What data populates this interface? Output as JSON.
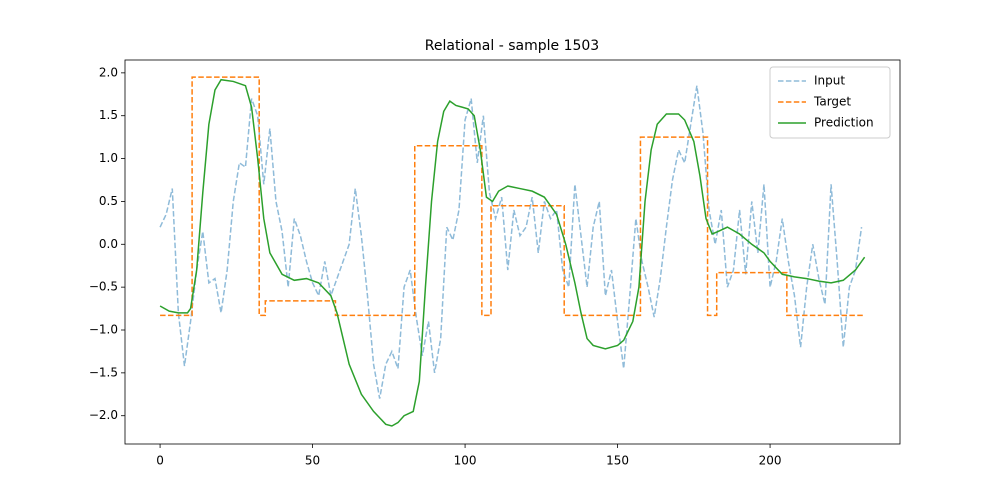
{
  "chart_data": {
    "type": "line",
    "title": "Relational - sample 1503",
    "xlim": [
      -11.5,
      242.6
    ],
    "ylim": [
      -2.33,
      2.15
    ],
    "xticks": [
      0,
      50,
      100,
      150,
      200
    ],
    "yticks": [
      {
        "value": -2,
        "label": "−2.0"
      },
      {
        "value": -1.5,
        "label": "−1.5"
      },
      {
        "value": -1,
        "label": "−1.0"
      },
      {
        "value": -0.5,
        "label": "−0.5"
      },
      {
        "value": 0,
        "label": "0.0"
      },
      {
        "value": 0.5,
        "label": "0.5"
      },
      {
        "value": 1,
        "label": "1.0"
      },
      {
        "value": 1.5,
        "label": "1.5"
      },
      {
        "value": 2,
        "label": "2.0"
      }
    ],
    "legend": "upper right",
    "series": [
      {
        "name": "Input",
        "color": "#1f77b4",
        "dash": true,
        "opacity": 0.5,
        "x": [
          0,
          2,
          4,
          6,
          8,
          10,
          12,
          14,
          16,
          18,
          20,
          22,
          24,
          26,
          28,
          30,
          32,
          34,
          36,
          38,
          40,
          42,
          44,
          46,
          48,
          50,
          52,
          54,
          56,
          58,
          60,
          62,
          64,
          66,
          68,
          70,
          72,
          74,
          76,
          78,
          80,
          82,
          84,
          86,
          88,
          90,
          92,
          94,
          96,
          98,
          100,
          102,
          104,
          106,
          108,
          110,
          112,
          114,
          116,
          118,
          120,
          122,
          124,
          126,
          128,
          130,
          132,
          134,
          136,
          138,
          140,
          142,
          144,
          146,
          148,
          150,
          152,
          154,
          156,
          158,
          160,
          162,
          164,
          166,
          168,
          170,
          172,
          174,
          176,
          178,
          180,
          182,
          184,
          186,
          188,
          190,
          192,
          194,
          196,
          198,
          200,
          202,
          204,
          206,
          208,
          210,
          212,
          214,
          216,
          218,
          220,
          222,
          224,
          226,
          228,
          230
        ],
        "values": [
          0.2,
          0.35,
          0.65,
          -0.8,
          -1.42,
          -0.9,
          -0.3,
          0.15,
          -0.45,
          -0.4,
          -0.8,
          -0.3,
          0.5,
          0.95,
          0.9,
          1.7,
          1.5,
          0.7,
          1.35,
          0.5,
          0.15,
          -0.5,
          0.3,
          0.1,
          -0.2,
          -0.45,
          -0.6,
          -0.2,
          -0.6,
          -0.4,
          -0.2,
          0.0,
          0.65,
          0.1,
          -0.6,
          -1.4,
          -1.8,
          -1.4,
          -1.25,
          -1.45,
          -0.5,
          -0.3,
          -0.85,
          -1.3,
          -0.9,
          -1.5,
          -1.1,
          0.2,
          0.05,
          0.4,
          1.45,
          1.7,
          0.95,
          1.5,
          0.6,
          0.3,
          0.55,
          -0.3,
          0.4,
          0.1,
          0.2,
          0.55,
          -0.1,
          0.5,
          0.3,
          0.4,
          -0.3,
          -0.5,
          0.7,
          0.1,
          -0.5,
          0.2,
          0.5,
          -0.6,
          -0.3,
          -0.9,
          -1.45,
          -0.6,
          0.3,
          -0.2,
          -0.5,
          -0.85,
          -0.4,
          0.2,
          0.75,
          1.1,
          0.95,
          1.4,
          1.85,
          1.3,
          0.4,
          0.0,
          0.4,
          -0.5,
          -0.3,
          0.4,
          -0.35,
          0.5,
          -0.1,
          0.7,
          -0.5,
          -0.2,
          0.3,
          -0.2,
          -0.6,
          -1.2,
          -0.5,
          0.0,
          -0.4,
          -0.7,
          0.7,
          -0.2,
          -1.2,
          -0.5,
          -0.3,
          0.2
        ]
      },
      {
        "name": "Target",
        "color": "#ff7f0e",
        "dash": true,
        "opacity": 1,
        "x": [
          0,
          10.5,
          10.5,
          32.5,
          32.5,
          34.5,
          34.5,
          57.5,
          57.5,
          83.5,
          83.5,
          105.5,
          105.5,
          108.5,
          108.5,
          132.5,
          132.5,
          157.5,
          157.5,
          179.5,
          179.5,
          182.5,
          182.5,
          205.5,
          205.5,
          231
        ],
        "values": [
          -0.83,
          -0.83,
          1.95,
          1.95,
          -0.83,
          -0.83,
          -0.66,
          -0.66,
          -0.83,
          -0.83,
          1.15,
          1.15,
          -0.83,
          -0.83,
          0.45,
          0.45,
          -0.83,
          -0.83,
          1.25,
          1.25,
          -0.83,
          -0.83,
          -0.33,
          -0.33,
          -0.83,
          -0.83
        ]
      },
      {
        "name": "Prediction",
        "color": "#2ca02c",
        "dash": false,
        "opacity": 1,
        "x": [
          0,
          3,
          6,
          9,
          10,
          12,
          14,
          16,
          18,
          20,
          24,
          28,
          30,
          32,
          34,
          36,
          40,
          44,
          48,
          52,
          56,
          58,
          60,
          62,
          66,
          70,
          74,
          76,
          78,
          80,
          83,
          85,
          87,
          89,
          91,
          93,
          95,
          97,
          99,
          101,
          103,
          105,
          107,
          109,
          111,
          114,
          118,
          122,
          126,
          130,
          133,
          136,
          138,
          140,
          142,
          146,
          150,
          152,
          155,
          157,
          159,
          161,
          163,
          166,
          170,
          172,
          175,
          177,
          179,
          181,
          183,
          186,
          190,
          194,
          198,
          200,
          204,
          208,
          212,
          216,
          220,
          224,
          228,
          231
        ],
        "values": [
          -0.72,
          -0.78,
          -0.8,
          -0.8,
          -0.75,
          -0.3,
          0.6,
          1.4,
          1.8,
          1.92,
          1.9,
          1.85,
          1.6,
          1.0,
          0.3,
          -0.1,
          -0.35,
          -0.42,
          -0.4,
          -0.45,
          -0.6,
          -0.8,
          -1.1,
          -1.4,
          -1.75,
          -1.95,
          -2.1,
          -2.12,
          -2.08,
          -2.0,
          -1.95,
          -1.6,
          -0.5,
          0.5,
          1.2,
          1.55,
          1.67,
          1.62,
          1.6,
          1.58,
          1.5,
          1.1,
          0.55,
          0.5,
          0.62,
          0.68,
          0.65,
          0.62,
          0.55,
          0.35,
          0.0,
          -0.45,
          -0.8,
          -1.1,
          -1.18,
          -1.22,
          -1.18,
          -1.12,
          -0.9,
          -0.5,
          0.5,
          1.1,
          1.4,
          1.52,
          1.52,
          1.45,
          1.2,
          0.8,
          0.3,
          0.12,
          0.15,
          0.2,
          0.12,
          0.0,
          -0.1,
          -0.2,
          -0.35,
          -0.38,
          -0.4,
          -0.43,
          -0.45,
          -0.42,
          -0.3,
          -0.15
        ]
      }
    ]
  }
}
